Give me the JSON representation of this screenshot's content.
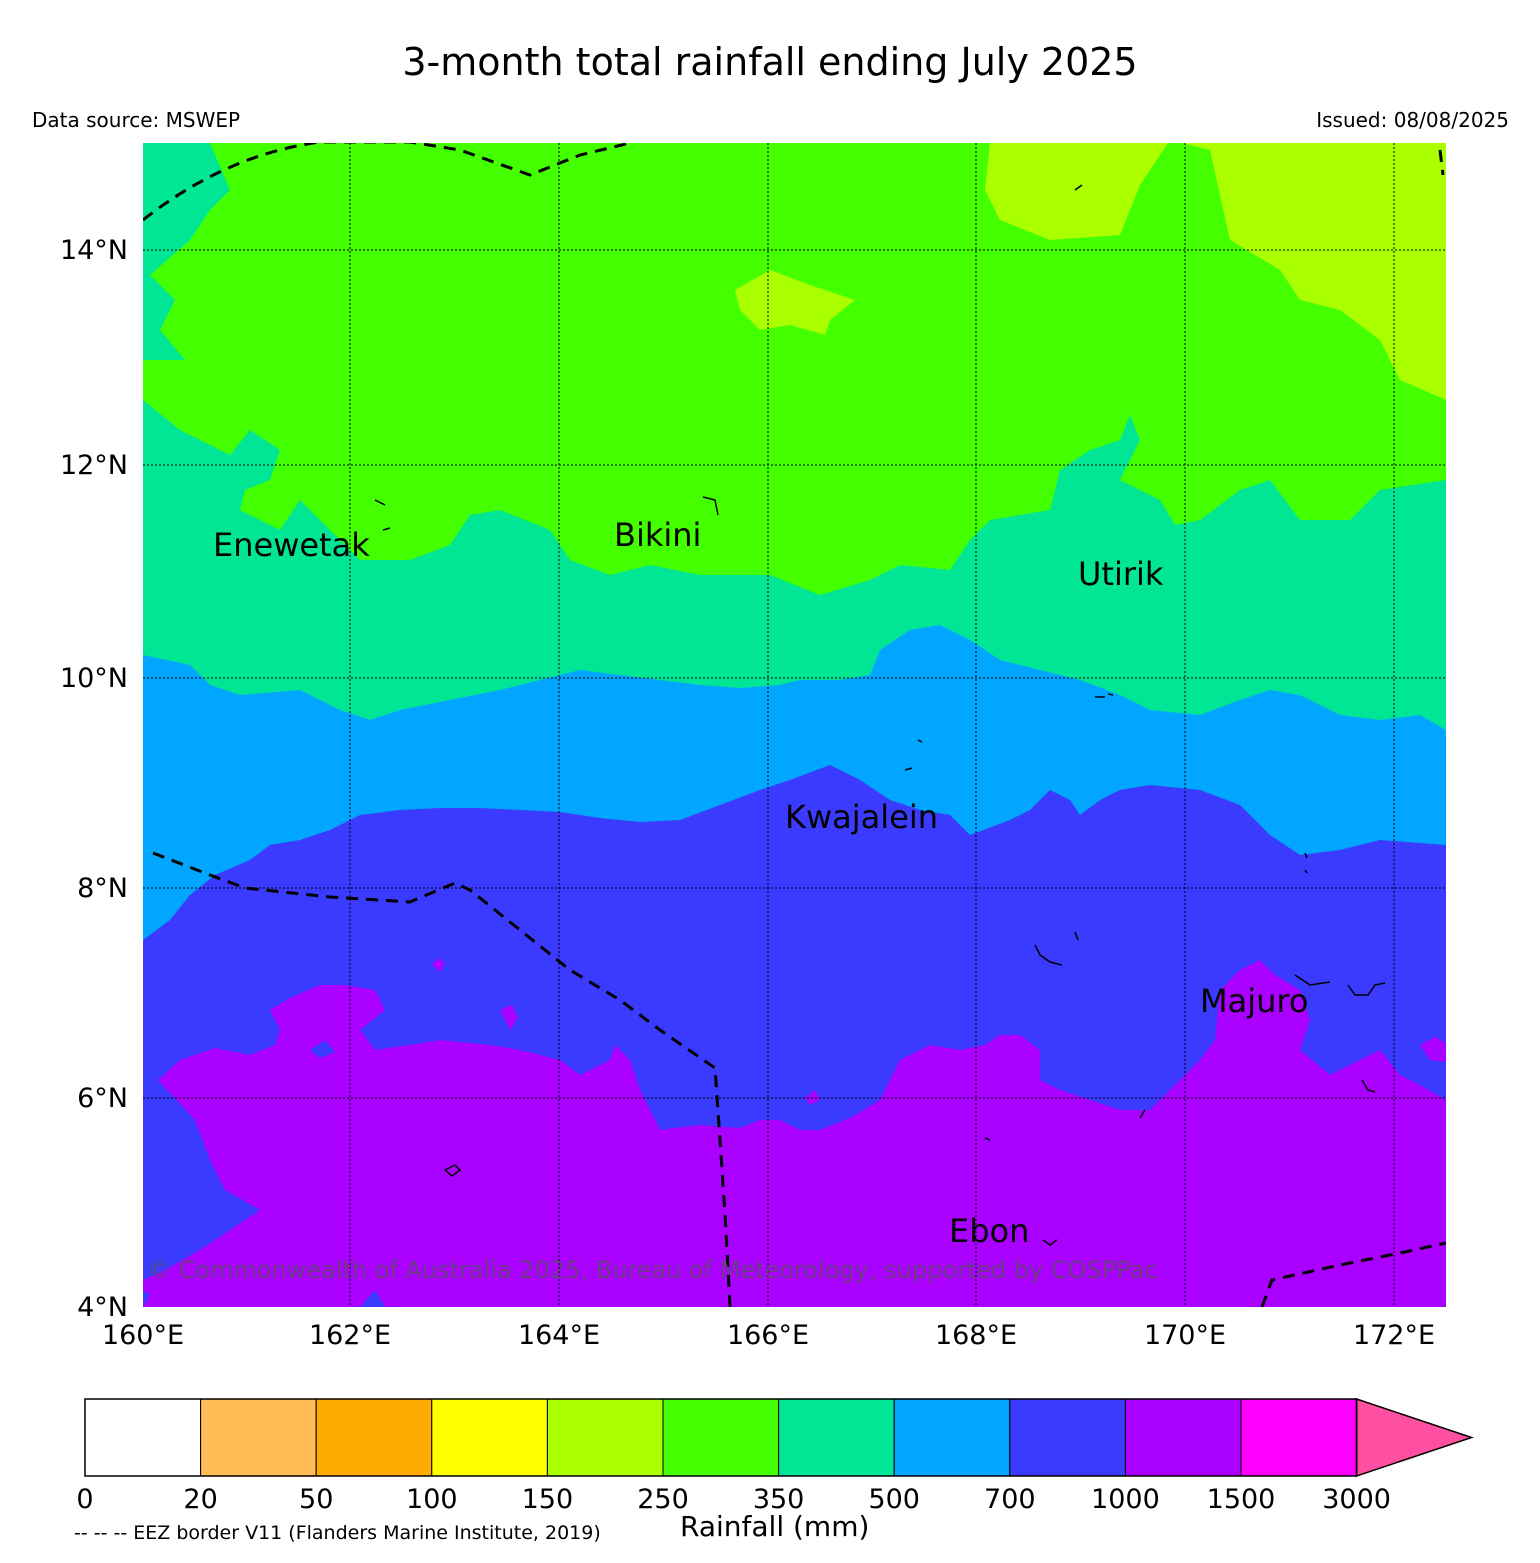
{
  "header": {
    "title": "3-month total rainfall ending July 2025",
    "data_source": "Data source: MSWEP",
    "issued": "Issued: 08/08/2025"
  },
  "map": {
    "lat_labels": [
      "14°N",
      "12°N",
      "10°N",
      "8°N",
      "6°N",
      "4°N"
    ],
    "lon_labels": [
      "160°E",
      "162°E",
      "164°E",
      "166°E",
      "168°E",
      "170°E",
      "172°E"
    ],
    "places": [
      "Enewetak",
      "Bikini",
      "Utirik",
      "Kwajalein",
      "Majuro",
      "Ebon"
    ],
    "copyright": "© Commonwealth of Australia 2025, Bureau of Meteorology, supported by COSPPac",
    "eez_note": "-- -- -- EEZ border V11 (Flanders Marine Institute, 2019)"
  },
  "colorbar": {
    "label": "Rainfall (mm)",
    "ticks": [
      "0",
      "20",
      "50",
      "100",
      "150",
      "250",
      "350",
      "500",
      "700",
      "1000",
      "1500",
      "3000"
    ],
    "colors": [
      "#ffffff",
      "#ffbb55",
      "#ffaa00",
      "#ffff00",
      "#aaff00",
      "#44ff00",
      "#00e695",
      "#00a6ff",
      "#3b3bff",
      "#aa00ff",
      "#ff00ff"
    ],
    "extend_color": "#ff4fa0"
  }
}
